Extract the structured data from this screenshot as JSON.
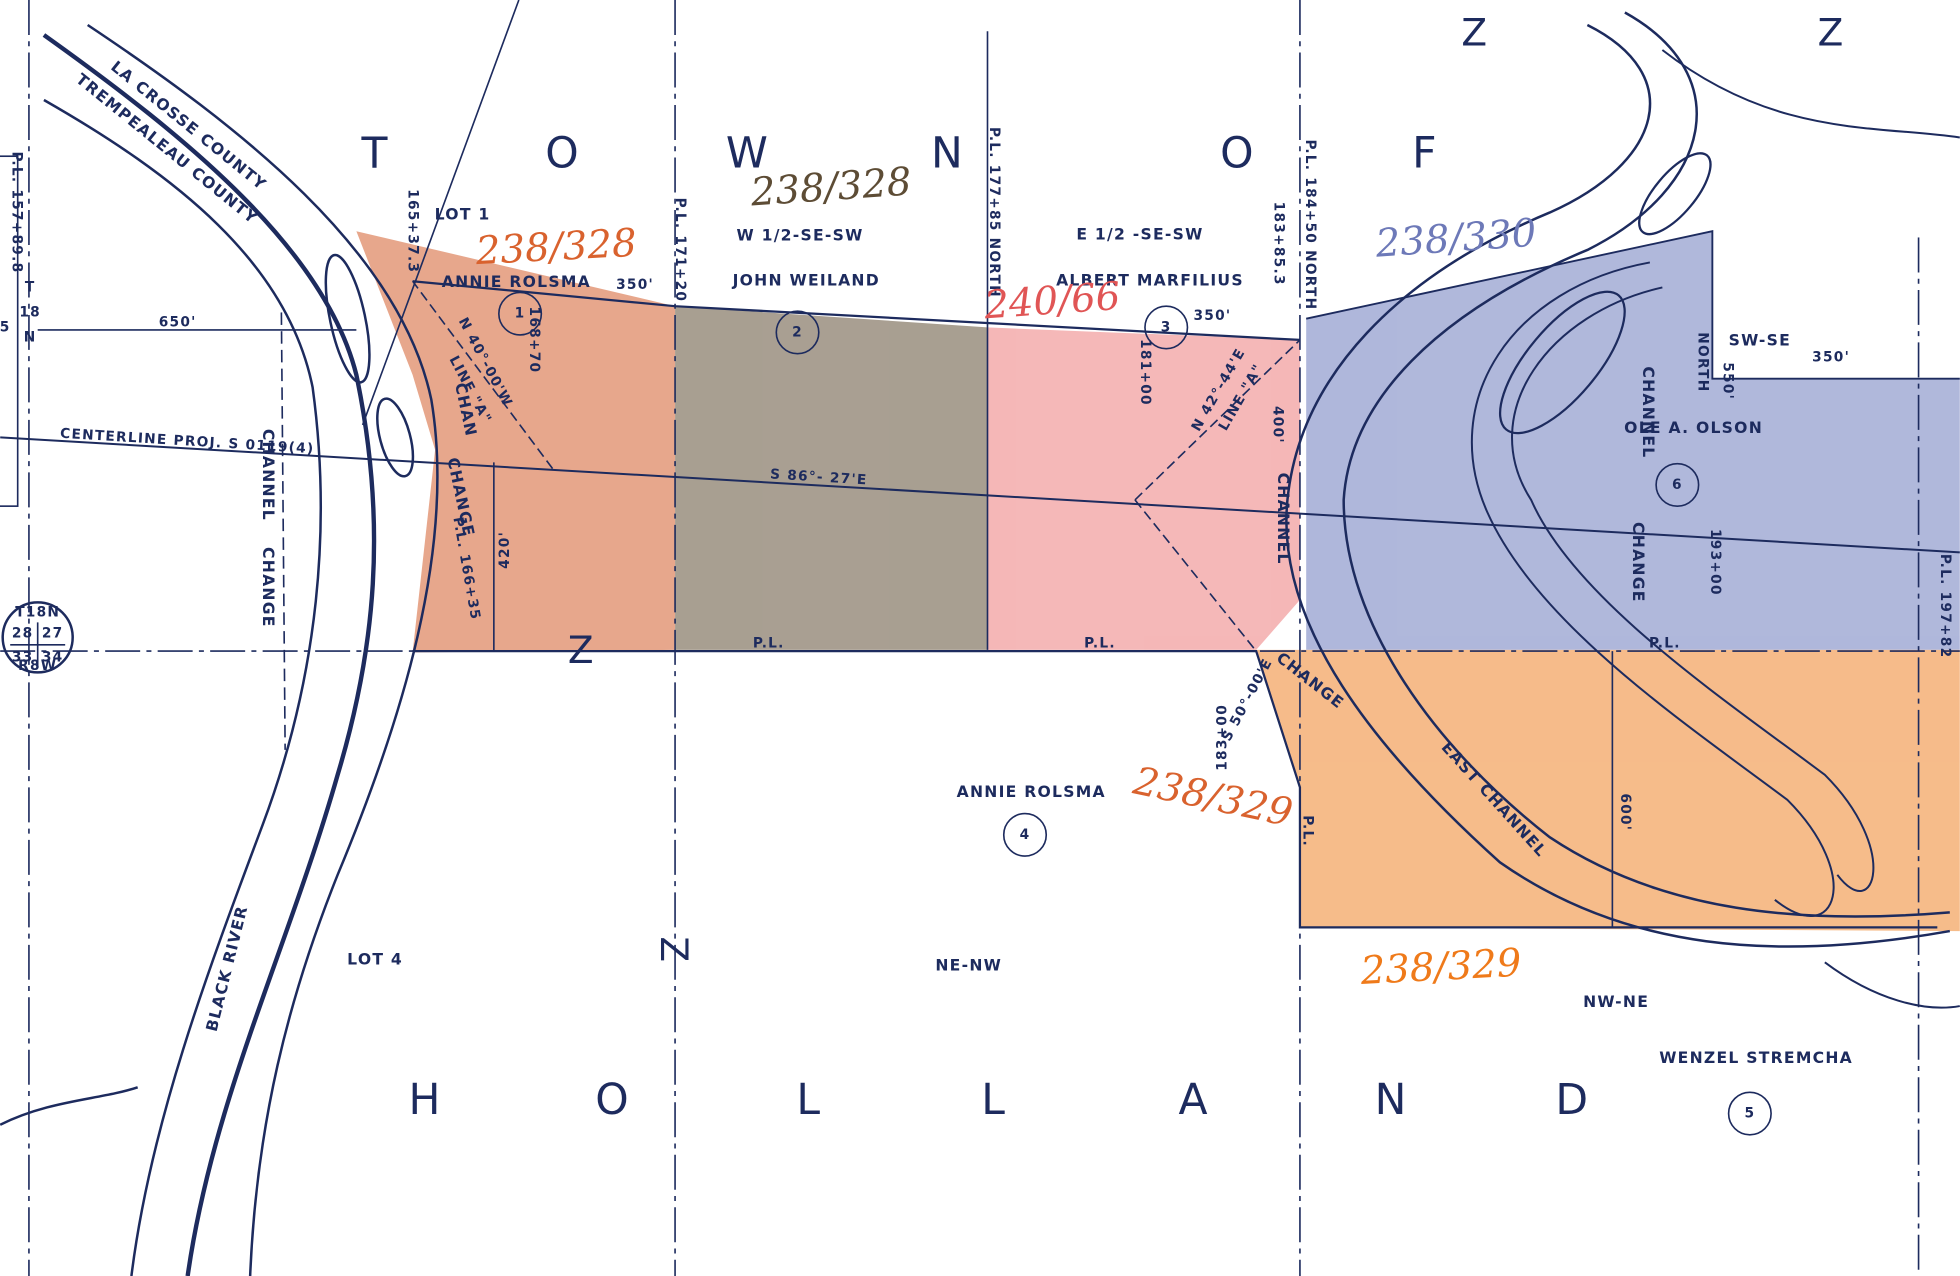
{
  "town_name": {
    "top": [
      "T",
      "O",
      "W",
      "N",
      "O",
      "F"
    ],
    "bottom": [
      "H",
      "O",
      "L",
      "L",
      "A",
      "N",
      "D"
    ]
  },
  "counties": [
    "LA CROSSE COUNTY",
    "TREMPEALEAU COUNTY"
  ],
  "river": "BLACK RIVER",
  "channel_labels": [
    "CHANNEL",
    "CHANGE",
    "CHAN",
    "CHANGE",
    "CHANNEL",
    "CHANGE",
    "CHANNEL",
    "CHANGE",
    "EAST CHANNEL"
  ],
  "stations": [
    "P.L. 157+89.8",
    "165+37.3",
    "168+70",
    "P.L. 171+20",
    "P.L. 177+85 NORTH",
    "181+00",
    "P.L. 184+50 NORTH",
    "183+85.3",
    "P.L. 166+35",
    "183+00",
    "193+00",
    "P.L. 197+82"
  ],
  "bearings": [
    "N 40°-00'W",
    "LINE \"A\"",
    "N 42°-44'E",
    "LINE \"A\"",
    "S 86°- 27'E",
    "S 50°-00'E",
    "CENTERLINE PROJ. S 0119(4)"
  ],
  "distances": [
    "650'",
    "350'",
    "350'",
    "350'",
    "420'",
    "400'",
    "600'",
    "550'",
    "NORTH"
  ],
  "parcels": [
    {
      "number": "1",
      "description": "LOT 1",
      "owner": "ANNIE   ROLSMA",
      "recording": "238/328"
    },
    {
      "number": "2",
      "description": "W 1/2-SE-SW",
      "owner": "JOHN   WEILAND",
      "recording": "238/328"
    },
    {
      "number": "3",
      "description": "E 1/2 -SE-SW",
      "owner": "ALBERT   MARFILIUS",
      "recording": "240/66"
    },
    {
      "number": "4",
      "description": "NE-NW",
      "owner": "ANNIE   ROLSMA",
      "recording": "238/329",
      "lot": "LOT 4"
    },
    {
      "number": "5",
      "description": "NW-NE",
      "owner": "WENZEL      STREMCHA",
      "recording": "238/329"
    },
    {
      "number": "6",
      "description": "SW-SE",
      "owner": "OLE   A.   OLSON",
      "recording": "238/330"
    }
  ],
  "section_corner": {
    "township": "T18N",
    "range": "R8W",
    "sections": [
      "28",
      "27",
      "33",
      "34"
    ]
  },
  "margin": [
    "T",
    "18",
    "N",
    "5"
  ],
  "property_line_labels": [
    "P.L.",
    "P.L.",
    "P.L.",
    "P.L."
  ],
  "marks": [
    "Z",
    "Z",
    "Z",
    "Z"
  ]
}
